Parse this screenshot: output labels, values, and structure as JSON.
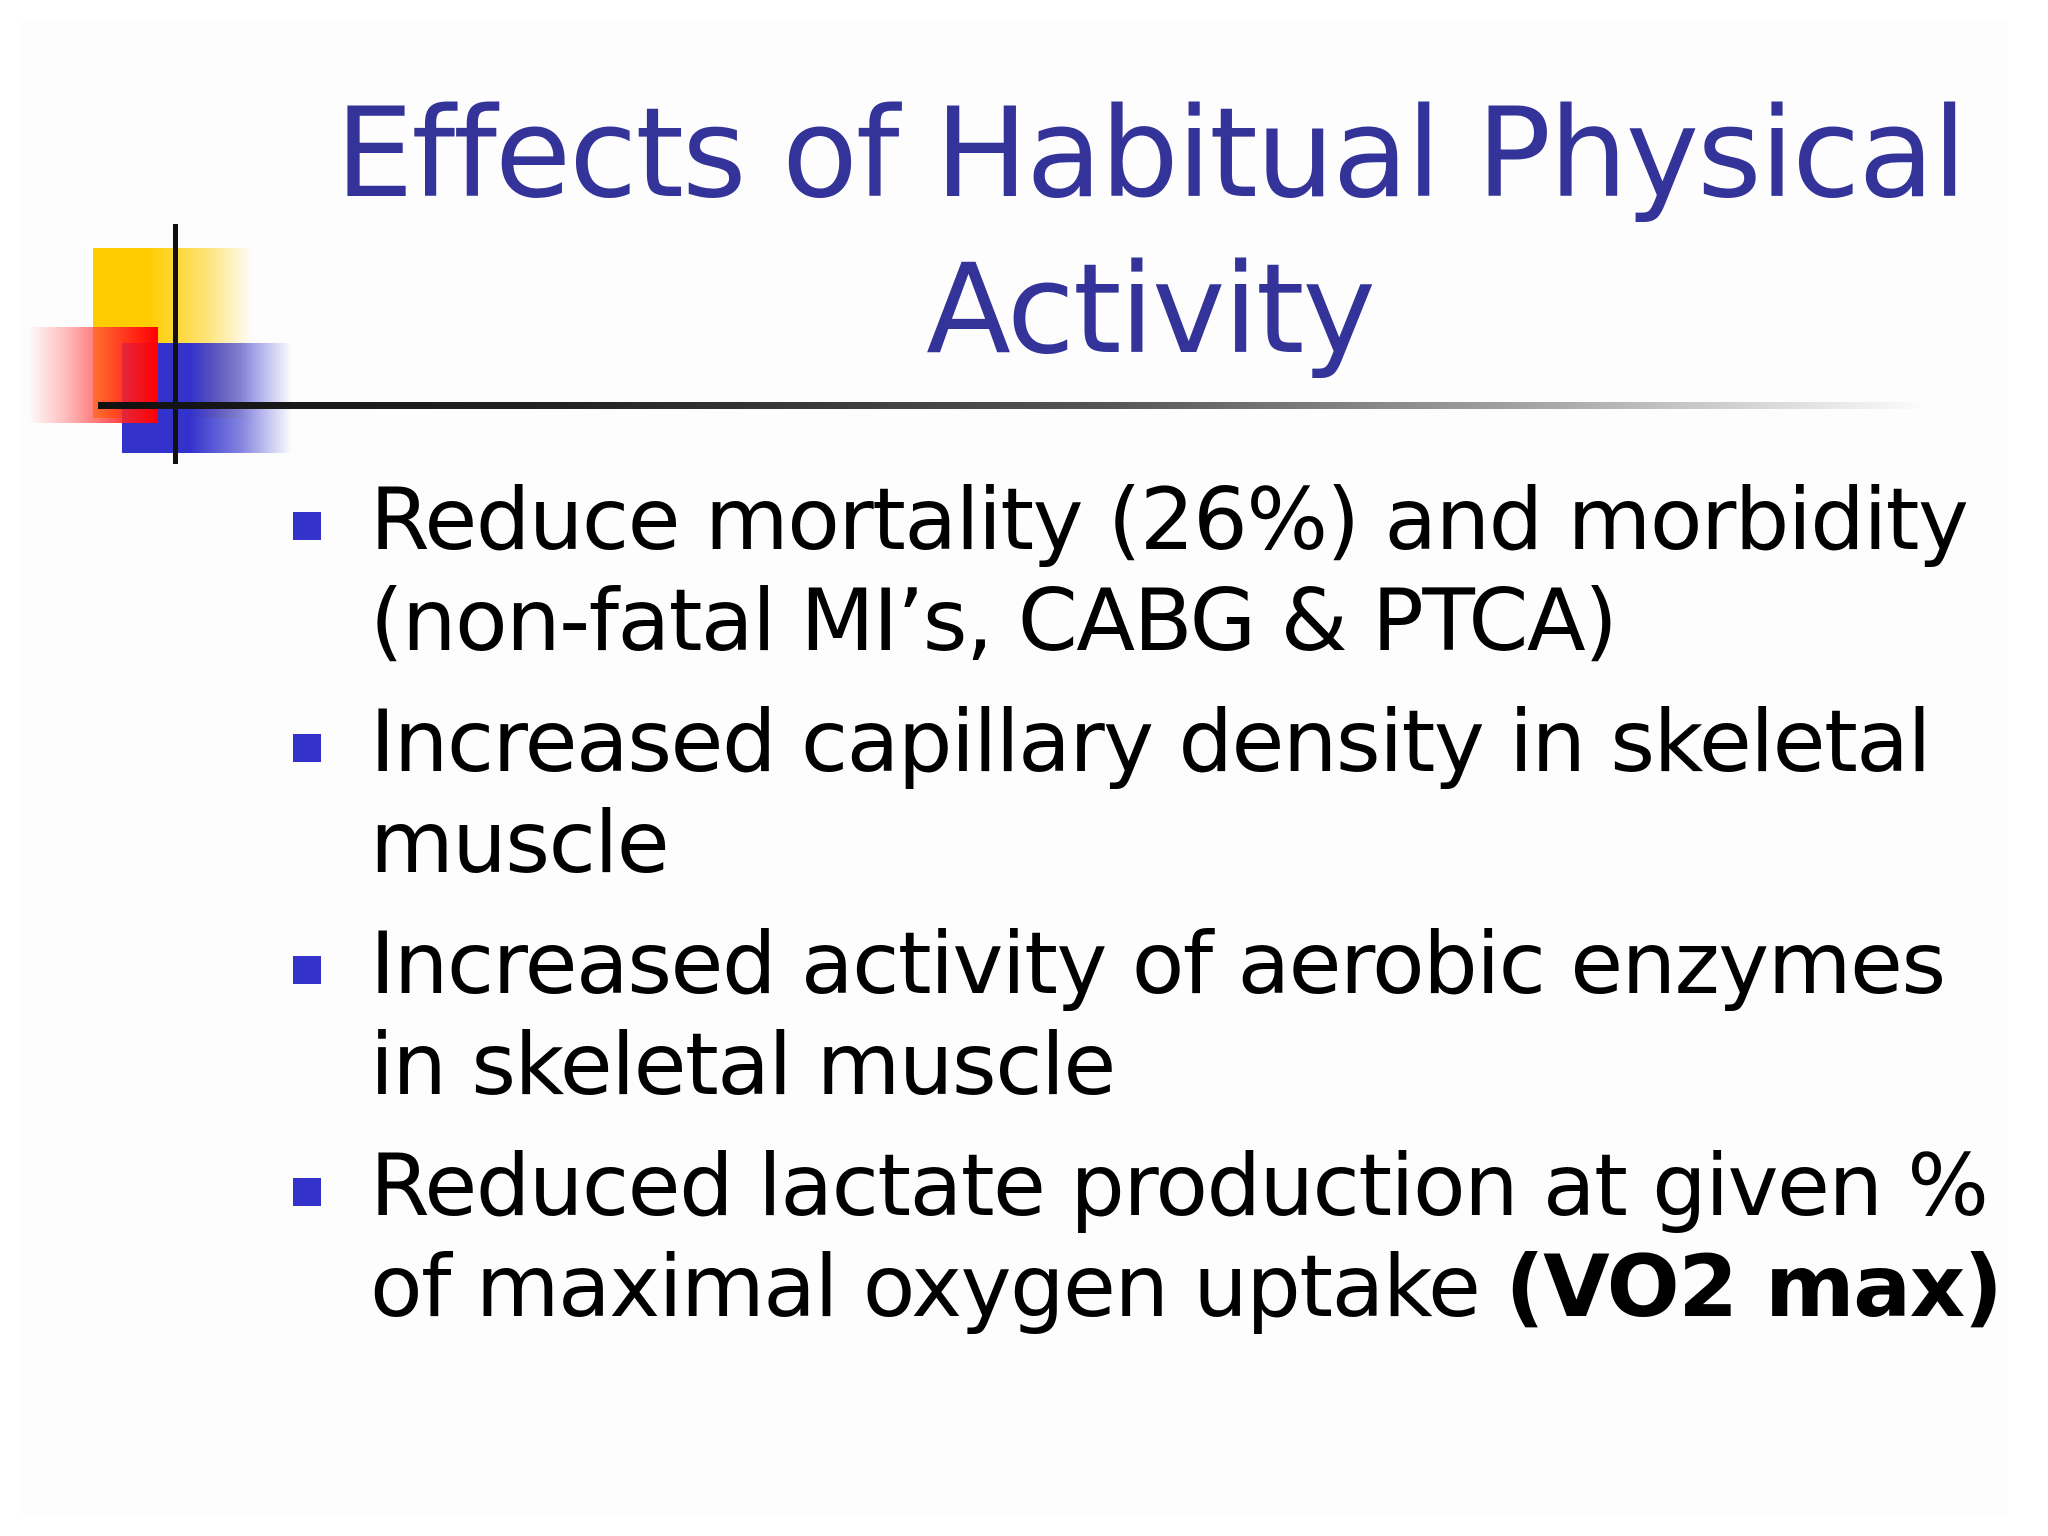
{
  "slide": {
    "title": "Effects of Habitual Physical Activity",
    "accent_color": "#333399",
    "bullet_color": "#3333cc",
    "bullets": [
      {
        "text": "Reduce mortality (26%) and morbidity (non-fatal MI’s, CABG & PTCA)",
        "bold_suffix": ""
      },
      {
        "text": "Increased capillary density in skeletal muscle",
        "bold_suffix": ""
      },
      {
        "text": "Increased activity of aerobic enzymes in skeletal muscle",
        "bold_suffix": ""
      },
      {
        "text": "Reduced lactate production at given % of maximal oxygen uptake ",
        "bold_suffix": "(VO2 max)"
      }
    ]
  }
}
